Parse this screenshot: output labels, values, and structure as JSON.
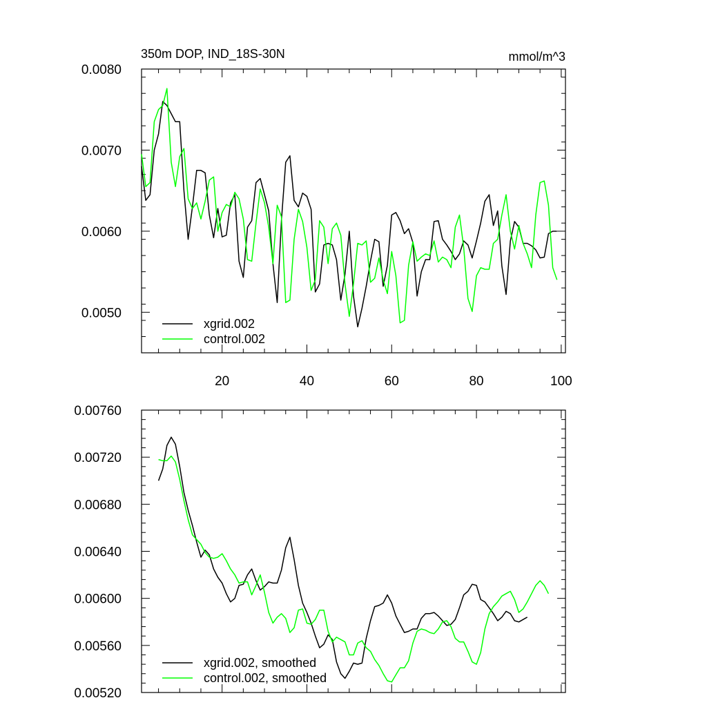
{
  "chart_data": [
    {
      "type": "line",
      "title": "350m DOP, IND_18S-30N",
      "units": "mmol/m^3",
      "xlim": [
        1,
        101
      ],
      "ylim": [
        0.0045,
        0.008
      ],
      "y_major_ticks": [
        0.005,
        0.006,
        0.007,
        0.008
      ],
      "y_tick_labels": [
        "0.0050",
        "0.0060",
        "0.0070",
        "0.0080"
      ],
      "x_major_ticks": [
        20,
        40,
        60,
        80,
        100
      ],
      "x_tick_labels": [
        "20",
        "40",
        "60",
        "80",
        "100"
      ],
      "legend_position": "bottom-left",
      "series": [
        {
          "name": "xgrid.002",
          "color": "#000000",
          "x_start": 1,
          "values": [
            0.0068,
            0.00638,
            0.00645,
            0.007,
            0.0072,
            0.0076,
            0.00755,
            0.00745,
            0.00735,
            0.00735,
            0.0065,
            0.0059,
            0.0063,
            0.00675,
            0.00675,
            0.00672,
            0.0062,
            0.00592,
            0.00628,
            0.00593,
            0.00595,
            0.00635,
            0.00645,
            0.00563,
            0.00543,
            0.00605,
            0.00613,
            0.0066,
            0.00665,
            0.00645,
            0.00625,
            0.0056,
            0.00512,
            0.00613,
            0.00685,
            0.00693,
            0.00638,
            0.0063,
            0.00647,
            0.00643,
            0.00627,
            0.00525,
            0.00535,
            0.00583,
            0.00585,
            0.00583,
            0.00565,
            0.00515,
            0.00547,
            0.006,
            0.0052,
            0.00482,
            0.00505,
            0.00532,
            0.00563,
            0.0059,
            0.00587,
            0.00532,
            0.00558,
            0.0062,
            0.00623,
            0.00613,
            0.00597,
            0.00603,
            0.00586,
            0.0052,
            0.0055,
            0.00565,
            0.00565,
            0.00612,
            0.00613,
            0.0059,
            0.00583,
            0.00575,
            0.00565,
            0.00572,
            0.00588,
            0.00583,
            0.00567,
            0.00588,
            0.0061,
            0.00637,
            0.00645,
            0.00607,
            0.00625,
            0.00557,
            0.00522,
            0.00588,
            0.00612,
            0.00605,
            0.00585,
            0.00585,
            0.00582,
            0.00577,
            0.00567,
            0.00568,
            0.00597,
            0.006,
            0.006
          ]
        },
        {
          "name": "control.002",
          "color": "#00ff00",
          "x_start": 1,
          "values": [
            0.00695,
            0.00655,
            0.0066,
            0.00735,
            0.0075,
            0.00755,
            0.00776,
            0.00685,
            0.00655,
            0.00692,
            0.00702,
            0.0064,
            0.00628,
            0.00635,
            0.00615,
            0.00637,
            0.00663,
            0.00667,
            0.006,
            0.00623,
            0.00633,
            0.0063,
            0.00648,
            0.0064,
            0.00615,
            0.00565,
            0.00563,
            0.0061,
            0.00652,
            0.00635,
            0.00605,
            0.0056,
            0.00632,
            0.00618,
            0.00512,
            0.00515,
            0.0059,
            0.00627,
            0.00612,
            0.0058,
            0.00527,
            0.0054,
            0.00613,
            0.00605,
            0.0056,
            0.00603,
            0.0061,
            0.00595,
            0.00535,
            0.00495,
            0.00535,
            0.00585,
            0.00583,
            0.00588,
            0.00537,
            0.00542,
            0.00567,
            0.0054,
            0.00523,
            0.00575,
            0.00545,
            0.00487,
            0.0049,
            0.00558,
            0.00587,
            0.00563,
            0.00568,
            0.00572,
            0.0057,
            0.00588,
            0.00562,
            0.00568,
            0.00565,
            0.00555,
            0.00605,
            0.0062,
            0.0058,
            0.00517,
            0.00501,
            0.00545,
            0.00555,
            0.00553,
            0.00553,
            0.00585,
            0.0059,
            0.0062,
            0.00645,
            0.006,
            0.00578,
            0.00607,
            0.00585,
            0.00572,
            0.00555,
            0.0062,
            0.0066,
            0.00662,
            0.00632,
            0.00555,
            0.0054
          ]
        }
      ]
    },
    {
      "type": "line",
      "title": "",
      "xlim": [
        1,
        101
      ],
      "ylim": [
        0.0052,
        0.0076
      ],
      "y_major_ticks": [
        0.0052,
        0.0056,
        0.006,
        0.0064,
        0.0068,
        0.0072,
        0.0076
      ],
      "y_tick_labels": [
        "0.00520",
        "0.00560",
        "0.00600",
        "0.00640",
        "0.00680",
        "0.00720",
        "0.00760"
      ],
      "x_major_ticks": [
        20,
        40,
        60,
        80,
        100
      ],
      "x_tick_labels": [],
      "legend_position": "bottom-left",
      "series": [
        {
          "name": "xgrid.002, smoothed",
          "color": "#000000",
          "x_start": 5,
          "values": [
            0.007,
            0.0071,
            0.0073,
            0.00737,
            0.00731,
            0.00712,
            0.0069,
            0.00675,
            0.00662,
            0.00648,
            0.00635,
            0.00641,
            0.00637,
            0.00625,
            0.00618,
            0.00613,
            0.00604,
            0.00597,
            0.006,
            0.00611,
            0.00612,
            0.0062,
            0.00625,
            0.00615,
            0.00607,
            0.0061,
            0.00614,
            0.00613,
            0.00613,
            0.00624,
            0.00643,
            0.00652,
            0.00633,
            0.00611,
            0.00596,
            0.00588,
            0.00579,
            0.00568,
            0.00558,
            0.00561,
            0.00569,
            0.00565,
            0.00546,
            0.00536,
            0.00532,
            0.00538,
            0.00545,
            0.00544,
            0.00545,
            0.00566,
            0.00581,
            0.00593,
            0.00594,
            0.00596,
            0.00603,
            0.00596,
            0.00585,
            0.00578,
            0.00571,
            0.00572,
            0.00574,
            0.00574,
            0.00583,
            0.00587,
            0.00587,
            0.00588,
            0.00585,
            0.00581,
            0.00577,
            0.00578,
            0.00582,
            0.00592,
            0.00603,
            0.00606,
            0.00612,
            0.00611,
            0.00599,
            0.00597,
            0.00592,
            0.00587,
            0.00581,
            0.00584,
            0.00589,
            0.00587,
            0.00581,
            0.0058,
            0.00582,
            0.00584
          ]
        },
        {
          "name": "control.002, smoothed",
          "color": "#00ff00",
          "x_start": 5,
          "values": [
            0.00718,
            0.00717,
            0.00717,
            0.00721,
            0.00716,
            0.00701,
            0.00683,
            0.00667,
            0.00654,
            0.0065,
            0.00646,
            0.00639,
            0.00635,
            0.00634,
            0.00635,
            0.00638,
            0.00632,
            0.00625,
            0.0062,
            0.00613,
            0.00614,
            0.00614,
            0.00603,
            0.00611,
            0.0062,
            0.00605,
            0.00588,
            0.00579,
            0.00584,
            0.00587,
            0.00583,
            0.00571,
            0.00575,
            0.0059,
            0.00591,
            0.00579,
            0.00578,
            0.00582,
            0.0059,
            0.0059,
            0.00572,
            0.00563,
            0.00567,
            0.00565,
            0.00563,
            0.00552,
            0.00552,
            0.00562,
            0.00564,
            0.00558,
            0.00555,
            0.00548,
            0.00543,
            0.00536,
            0.0053,
            0.00529,
            0.00535,
            0.00541,
            0.00541,
            0.00547,
            0.00562,
            0.00572,
            0.00574,
            0.00573,
            0.00571,
            0.0057,
            0.00574,
            0.0058,
            0.00581,
            0.00576,
            0.00566,
            0.00563,
            0.00563,
            0.00555,
            0.00546,
            0.00544,
            0.00554,
            0.00574,
            0.00587,
            0.00593,
            0.00597,
            0.00602,
            0.00604,
            0.00606,
            0.00599,
            0.00588,
            0.00591,
            0.00597,
            0.00604,
            0.00611,
            0.00615,
            0.00611,
            0.00604
          ]
        }
      ]
    }
  ]
}
